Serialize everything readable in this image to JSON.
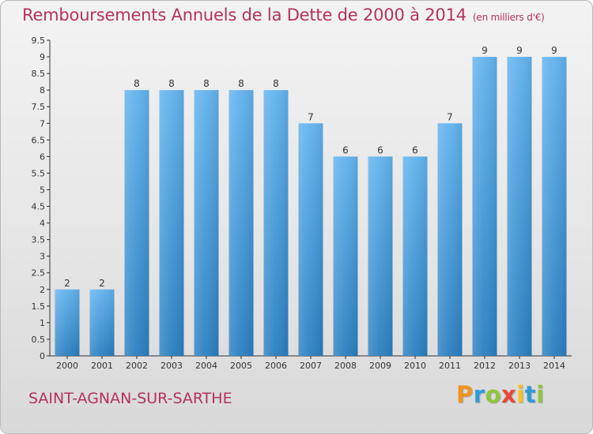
{
  "chart_data": {
    "type": "bar",
    "title": "Remboursements Annuels de la Dette de 2000 à 2014",
    "unit": "(en milliers d'€)",
    "categories": [
      "2000",
      "2001",
      "2002",
      "2003",
      "2004",
      "2005",
      "2006",
      "2007",
      "2008",
      "2009",
      "2010",
      "2011",
      "2012",
      "2013",
      "2014"
    ],
    "values": [
      2,
      2,
      8,
      8,
      8,
      8,
      8,
      7,
      6,
      6,
      6,
      7,
      9,
      9,
      9
    ],
    "data_labels": [
      "2",
      "2",
      "8",
      "8",
      "8",
      "8",
      "8",
      "7",
      "6",
      "6",
      "6",
      "7",
      "9",
      "9",
      "9"
    ],
    "y_ticks": [
      "0",
      "0.5",
      "1",
      "1.5",
      "2",
      "2.5",
      "3",
      "3.5",
      "4",
      "4.5",
      "5",
      "5.5",
      "6",
      "6.5",
      "7",
      "7.5",
      "8",
      "8.5",
      "9",
      "9.5"
    ],
    "ylim": [
      0,
      9.5
    ],
    "grid": false,
    "bar_color": "#4a9fdf"
  },
  "commune": "SAINT-AGNAN-SUR-SARTHE",
  "logo": {
    "letters": [
      "P",
      "r",
      "o",
      "x",
      "i",
      "t",
      "i"
    ],
    "colors": [
      "#f0941e",
      "#2d9bd6",
      "#8fc63e",
      "#e8473c",
      "#f6c21c",
      "#2d9bd6",
      "#8fc63e"
    ]
  }
}
